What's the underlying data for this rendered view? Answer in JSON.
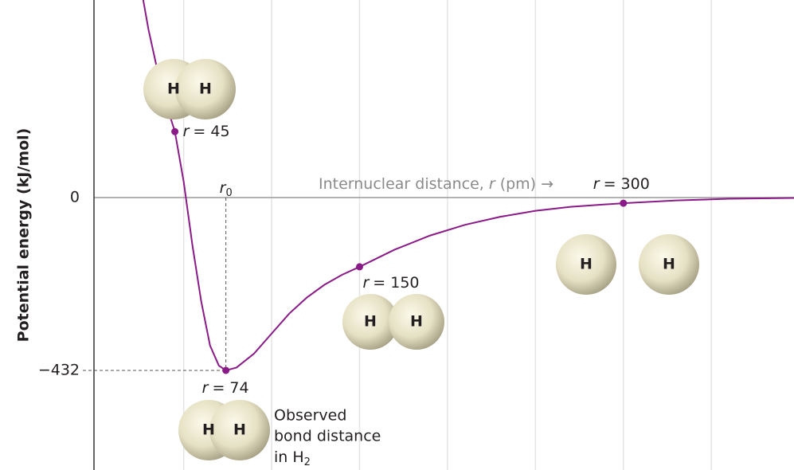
{
  "chart_data": {
    "type": "line",
    "ylabel": "Potential energy (kJ/mol)",
    "xlabel": [
      "Internuclear distance, ",
      "r",
      " (pm) →"
    ],
    "r0_label": [
      "r",
      "0"
    ],
    "note": [
      "Observed",
      "bond distance",
      "in H",
      "2"
    ],
    "atom_label": "H",
    "xlim": [
      -1,
      397
    ],
    "ylim": [
      -681,
      494
    ],
    "xticks": [
      50,
      100,
      150,
      200,
      250,
      300,
      350
    ],
    "yticks": [
      0,
      {
        "value": -432,
        "label": "−432"
      }
    ],
    "grid": true,
    "x": [
      27,
      30,
      35,
      40,
      45,
      50,
      55,
      60,
      65,
      70,
      74,
      80,
      90,
      100,
      110,
      120,
      130,
      140,
      150,
      170,
      190,
      210,
      230,
      250,
      270,
      300,
      330,
      360,
      397
    ],
    "series": [
      {
        "color": "#8b1a89",
        "values": [
          494,
          420,
          320,
          235,
          165,
          40,
          -120,
          -260,
          -370,
          -420,
          -432,
          -425,
          -390,
          -340,
          -290,
          -250,
          -218,
          -193,
          -173,
          -130,
          -95,
          -68,
          -48,
          -33,
          -23,
          -14,
          -7,
          -3,
          -1
        ]
      }
    ],
    "points": {
      "var": "r",
      "x": [
        45,
        74,
        150,
        300
      ],
      "values": [
        165,
        -432,
        -173,
        -14
      ],
      "labels": [
        "= 45",
        "= 74",
        "= 150",
        "= 300"
      ]
    },
    "minimum_index": 1
  }
}
